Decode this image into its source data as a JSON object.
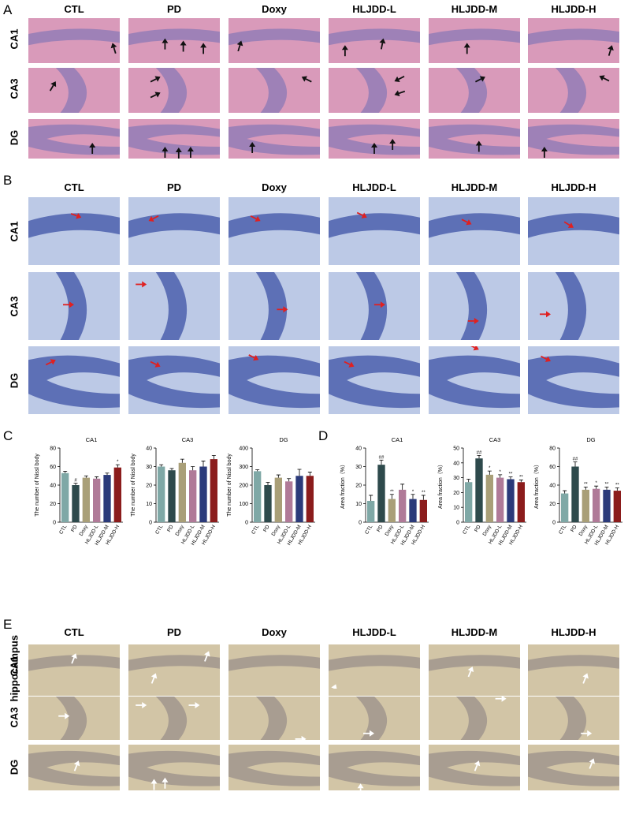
{
  "colors": {
    "he_bg": "#d99aba",
    "he_layer": "#8a78b6",
    "nissl_bg": "#bcc9e6",
    "nissl_layer": "#3e52a6",
    "ihc_bg": "#d2c5a6",
    "ihc_layer": "#9a8f8a",
    "black_arrow": "#111111",
    "red_arrow": "#e02020",
    "white_arrow": "#ffffff"
  },
  "panels": {
    "A": {
      "letter": "A",
      "columns": [
        "CTL",
        "PD",
        "Doxy",
        "HLJDD-L",
        "HLJDD-M",
        "HLJDD-H"
      ],
      "rows": [
        "CA1",
        "CA3",
        "DG"
      ]
    },
    "B": {
      "letter": "B",
      "columns": [
        "CTL",
        "PD",
        "Doxy",
        "HLJDD-L",
        "HLJDD-M",
        "HLJDD-H"
      ],
      "rows": [
        "CA1",
        "CA3",
        "DG"
      ]
    },
    "C": {
      "letter": "C"
    },
    "D": {
      "letter": "D"
    },
    "E": {
      "letter": "E",
      "columns": [
        "CTL",
        "PD",
        "Doxy",
        "HLJDD-L",
        "HLJDD-M",
        "HLJDD-H"
      ],
      "rows": [
        "hippocampus",
        "CA1",
        "CA3",
        "DG"
      ]
    }
  },
  "chart_data": [
    {
      "type": "bar",
      "title": "CA1",
      "ylabel": "The number of Nissl body",
      "categories": [
        "CTL",
        "PD",
        "Doxy",
        "HLJDD-L",
        "HLJDD-M",
        "HLJDD-H"
      ],
      "values": [
        53,
        40,
        48,
        47,
        51,
        59
      ],
      "errors": [
        2,
        2,
        2,
        2,
        2,
        3
      ],
      "annotations": [
        "",
        "#",
        "",
        "",
        "",
        "*"
      ],
      "ylim": [
        0,
        80
      ],
      "yticks": [
        0,
        20,
        40,
        60,
        80
      ]
    },
    {
      "type": "bar",
      "title": "CA3",
      "ylabel": "The number of Nissl body",
      "categories": [
        "CTL",
        "PD",
        "Doxy",
        "HLJDD-L",
        "HLJDD-M",
        "HLJDD-H"
      ],
      "values": [
        30,
        28,
        32,
        28,
        30,
        34
      ],
      "errors": [
        1,
        1,
        2,
        2,
        3,
        2
      ],
      "annotations": [
        "",
        "",
        "",
        "",
        "",
        ""
      ],
      "ylim": [
        0,
        40
      ],
      "yticks": [
        0,
        10,
        20,
        30,
        40
      ]
    },
    {
      "type": "bar",
      "title": "DG",
      "ylabel": "The number of Nissl body",
      "categories": [
        "CTL",
        "PD",
        "Doxy",
        "HLJDD-L",
        "HLJDD-M",
        "HLJDD-H"
      ],
      "values": [
        275,
        200,
        240,
        220,
        250,
        250
      ],
      "errors": [
        8,
        15,
        15,
        15,
        35,
        20
      ],
      "annotations": [
        "",
        "",
        "",
        "",
        "",
        ""
      ],
      "ylim": [
        0,
        400
      ],
      "yticks": [
        0,
        100,
        200,
        300,
        400
      ]
    },
    {
      "type": "bar",
      "title": "CA1",
      "ylabel": "Area fraction（%）",
      "categories": [
        "CTL",
        "PD",
        "Doxy",
        "HLJDD-L",
        "HLJDD-M",
        "HLJDD-H"
      ],
      "values": [
        11.5,
        31,
        12.5,
        17.5,
        12.5,
        12
      ],
      "errors": [
        3,
        2.5,
        2.5,
        3,
        2.5,
        2.5
      ],
      "annotations": [
        "",
        "##",
        "**",
        "",
        "*",
        "**"
      ],
      "ylim": [
        0,
        40
      ],
      "yticks": [
        0,
        10,
        20,
        30,
        40
      ]
    },
    {
      "type": "bar",
      "title": "CA3",
      "ylabel": "Area fraction（%）",
      "categories": [
        "CTL",
        "PD",
        "Doxy",
        "HLJDD-L",
        "HLJDD-M",
        "HLJDD-H"
      ],
      "values": [
        27,
        43,
        32,
        30,
        29,
        27
      ],
      "errors": [
        2,
        2,
        2.5,
        2,
        1.5,
        1.5
      ],
      "annotations": [
        "",
        "##",
        "*",
        "*",
        "**",
        "**"
      ],
      "ylim": [
        0,
        50
      ],
      "yticks": [
        0,
        10,
        20,
        30,
        40,
        50
      ]
    },
    {
      "type": "bar",
      "title": "DG",
      "ylabel": "Area fraction（%）",
      "categories": [
        "CTL",
        "PD",
        "Doxy",
        "HLJDD-L",
        "HLJDD-M",
        "HLJDD-H"
      ],
      "values": [
        31,
        60,
        35,
        36,
        35,
        34
      ],
      "errors": [
        3,
        5,
        3,
        3,
        3,
        3
      ],
      "annotations": [
        "",
        "##",
        "**",
        "*",
        "**",
        "**"
      ],
      "ylim": [
        0,
        80
      ],
      "yticks": [
        0,
        20,
        40,
        60,
        80
      ]
    }
  ],
  "bar_colors": [
    "#7fa8a6",
    "#2e4a4c",
    "#a99f78",
    "#b07a98",
    "#2b3a7a",
    "#8b1c1c"
  ]
}
